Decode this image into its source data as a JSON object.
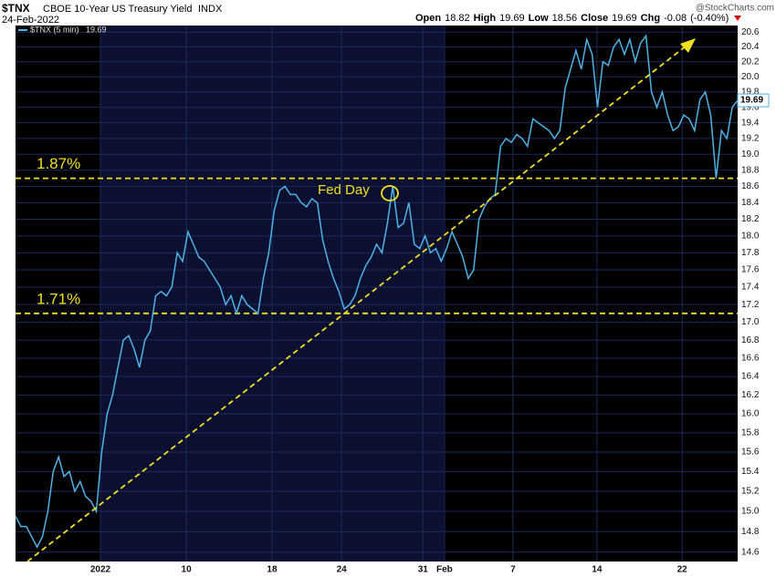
{
  "chart_data": {
    "type": "line",
    "symbol": "$TNX",
    "title": "CBOE 10-Year US Treasury Yield",
    "exchange": "INDX",
    "date": "24-Feb-2022",
    "credit": "@StockCharts.com",
    "quote": [
      {
        "label": "Open",
        "value": 18.82
      },
      {
        "label": "High",
        "value": 19.69
      },
      {
        "label": "Low",
        "value": 18.56
      },
      {
        "label": "Close",
        "value": 19.69
      },
      {
        "label": "Chg",
        "value": -0.08
      }
    ],
    "change_pct": "(-0.40%)",
    "last_value": 19.69,
    "log_scale": true,
    "grid": true,
    "series": [
      {
        "name": "$TNX (5 min)",
        "color": "#4db3e6",
        "values": [
          14.95,
          14.85,
          14.85,
          14.75,
          14.65,
          14.75,
          15.0,
          15.4,
          15.55,
          15.35,
          15.4,
          15.2,
          15.3,
          15.15,
          15.1,
          15.0,
          15.6,
          16.0,
          16.2,
          16.5,
          16.8,
          16.85,
          16.7,
          16.5,
          16.8,
          16.9,
          17.3,
          17.35,
          17.3,
          17.4,
          17.8,
          17.7,
          18.05,
          17.9,
          17.75,
          17.7,
          17.6,
          17.5,
          17.4,
          17.2,
          17.3,
          17.1,
          17.3,
          17.2,
          17.15,
          17.1,
          17.5,
          17.8,
          18.3,
          18.55,
          18.6,
          18.5,
          18.5,
          18.4,
          18.35,
          18.45,
          18.4,
          17.95,
          17.7,
          17.5,
          17.35,
          17.15,
          17.2,
          17.3,
          17.5,
          17.65,
          17.75,
          17.9,
          17.8,
          18.15,
          18.6,
          18.1,
          18.15,
          18.4,
          17.9,
          17.85,
          18.0,
          17.8,
          17.85,
          17.7,
          17.85,
          18.05,
          17.9,
          17.75,
          17.5,
          17.6,
          18.2,
          18.35,
          18.45,
          18.5,
          19.1,
          19.2,
          19.15,
          19.25,
          19.2,
          19.1,
          19.45,
          19.4,
          19.35,
          19.3,
          19.2,
          19.3,
          19.85,
          20.1,
          20.35,
          20.1,
          20.5,
          20.3,
          19.6,
          20.2,
          20.15,
          20.4,
          20.5,
          20.3,
          20.5,
          20.2,
          20.45,
          20.55,
          19.8,
          19.6,
          19.8,
          19.5,
          19.3,
          19.35,
          19.5,
          19.45,
          19.3,
          19.7,
          19.8,
          19.5,
          18.7,
          19.3,
          19.2,
          19.6,
          19.69
        ]
      }
    ],
    "xlim": [
      0,
      134
    ],
    "xticks": [
      {
        "value": 15.75,
        "label": "2022"
      },
      {
        "value": 31.7,
        "label": "10"
      },
      {
        "value": 47.6,
        "label": "18"
      },
      {
        "value": 60.5,
        "label": "24"
      },
      {
        "value": 75.6,
        "label": "31"
      },
      {
        "value": 79.6,
        "label": "Feb"
      },
      {
        "value": 92.3,
        "label": "7"
      },
      {
        "value": 107.9,
        "label": "14"
      },
      {
        "value": 123.7,
        "label": "22"
      }
    ],
    "ylim": [
      14.51,
      20.69
    ],
    "yticks": [
      14.6,
      14.8,
      {
        "value": 15,
        "label": "15.0"
      },
      15.2,
      15.4,
      15.6,
      15.8,
      {
        "value": 16,
        "label": "16.0"
      },
      16.2,
      16.4,
      16.6,
      16.8,
      {
        "value": 17,
        "label": "17.0"
      },
      17.2,
      17.4,
      17.6,
      17.8,
      {
        "value": 18,
        "label": "18.0"
      },
      18.2,
      18.4,
      18.6,
      18.8,
      {
        "value": 19,
        "label": "19.0"
      },
      19.2,
      19.4,
      19.6,
      19.8,
      {
        "value": 20,
        "label": "20.0"
      },
      20.2,
      20.4,
      20.6
    ],
    "reference_lines": [
      {
        "value": 18.7,
        "label": "1.87%"
      },
      {
        "value": 17.1,
        "label": "1.71%"
      }
    ],
    "annotation": "Fed Day"
  }
}
